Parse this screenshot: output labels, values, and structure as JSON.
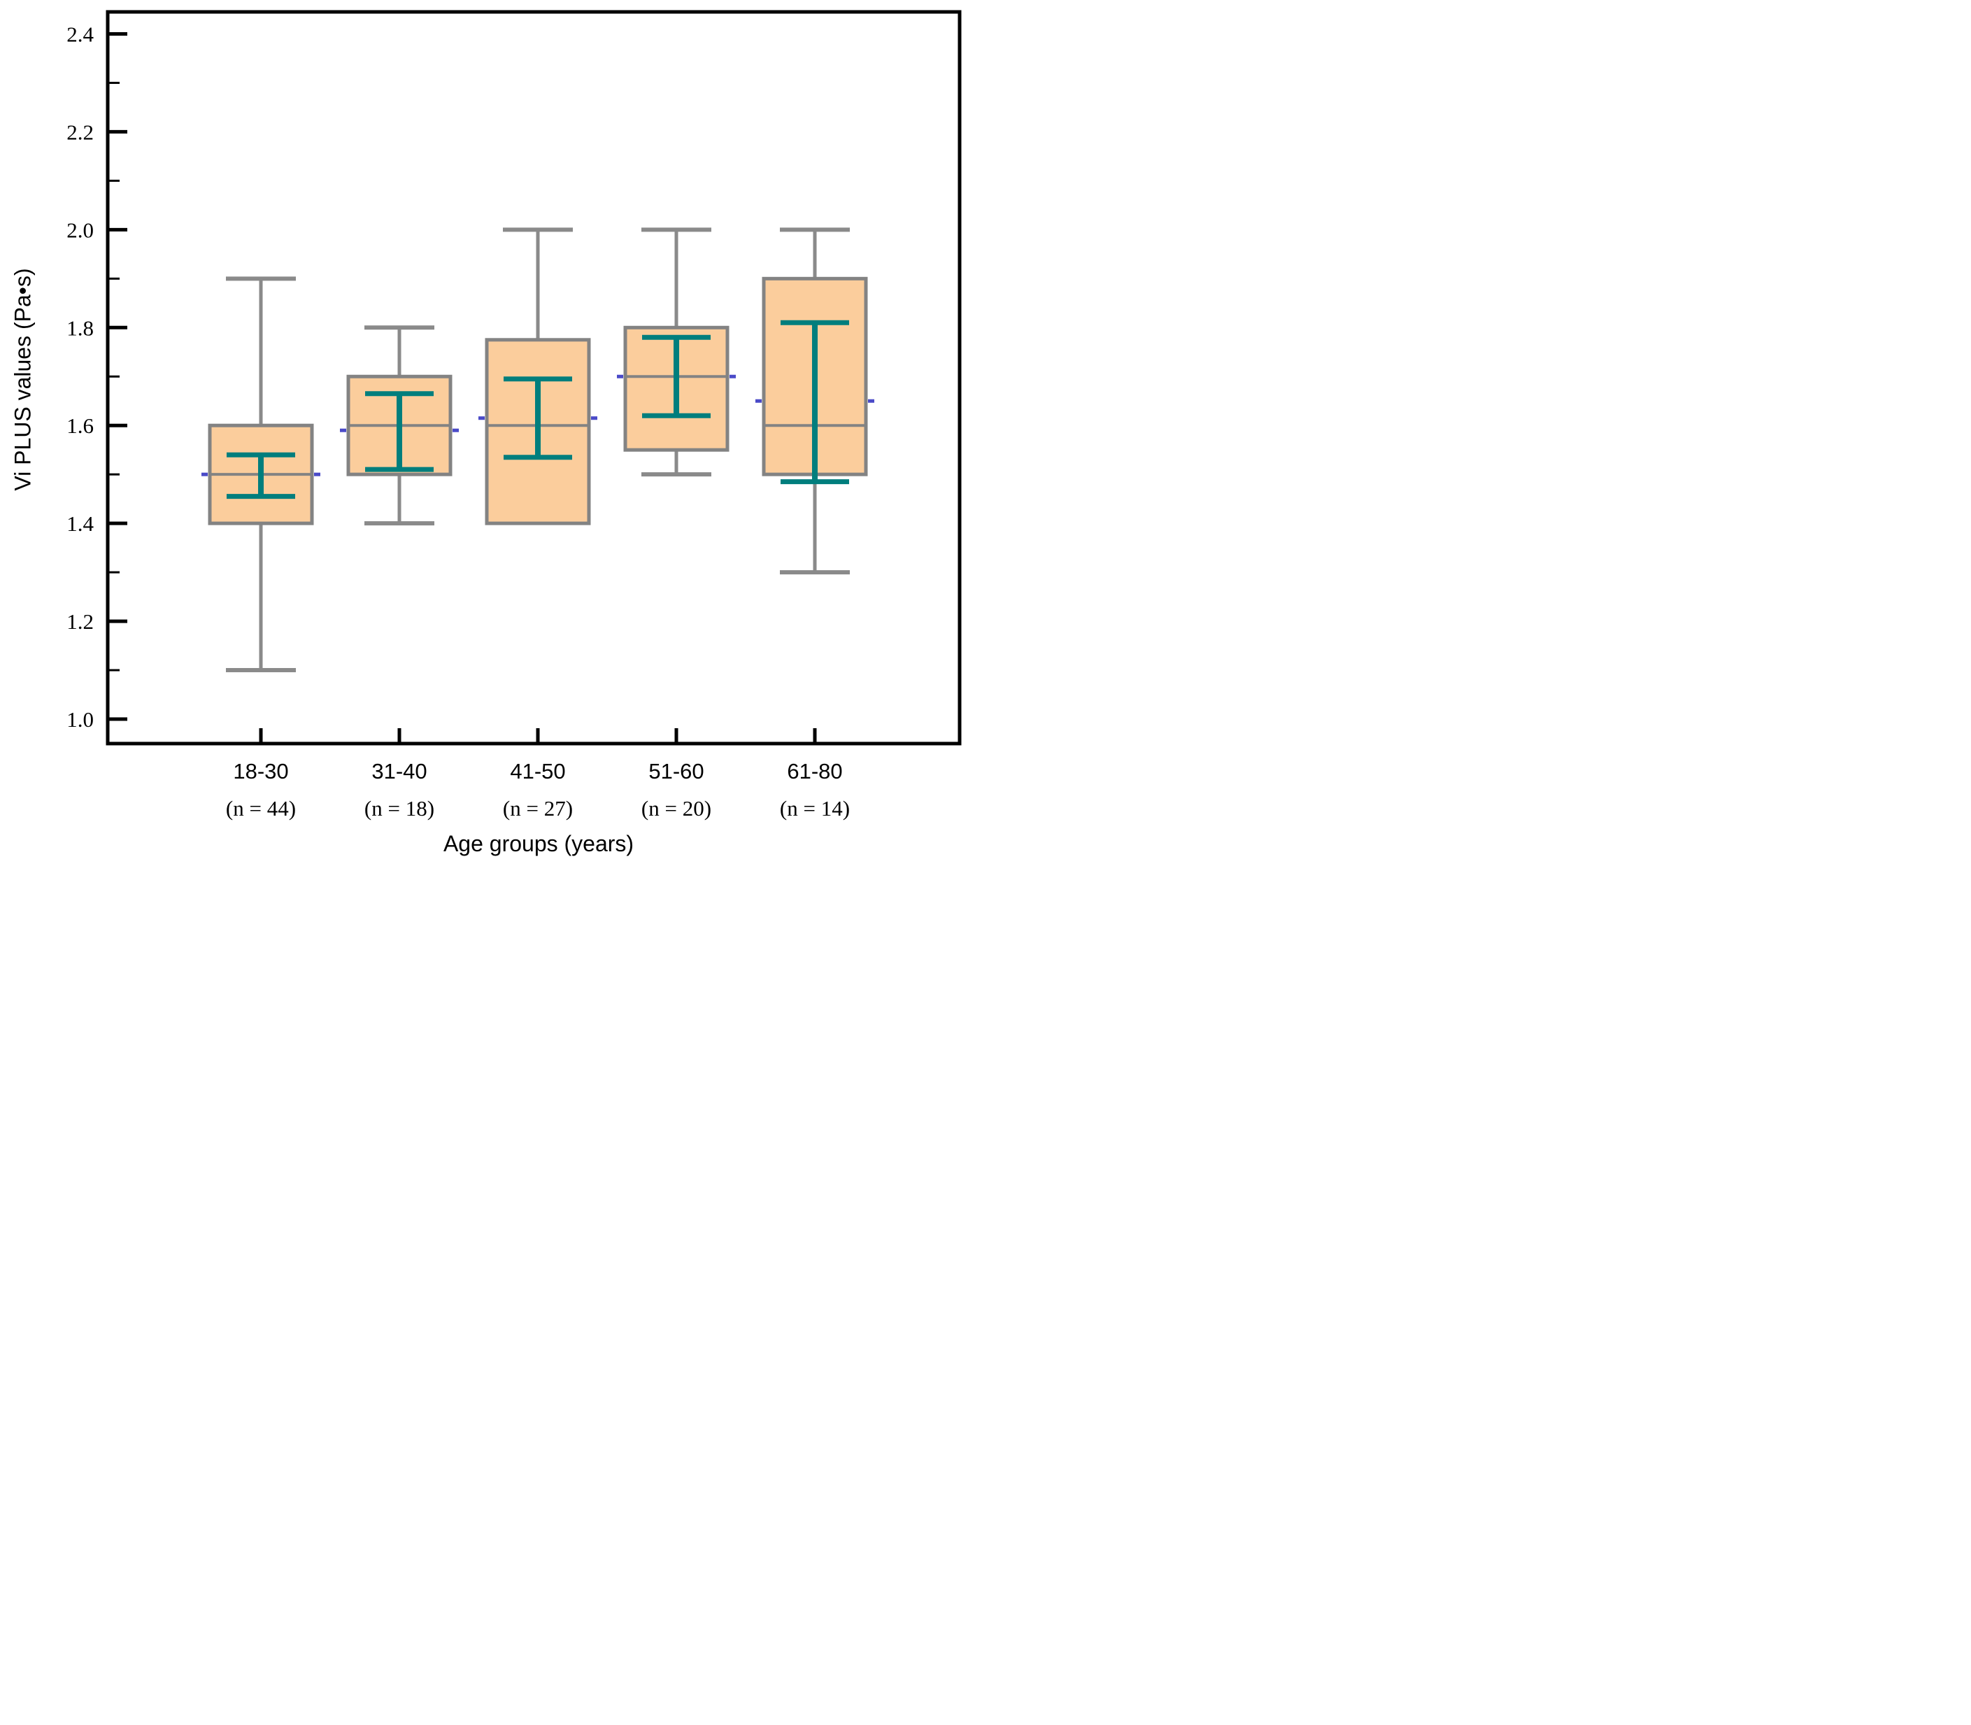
{
  "figure": {
    "y_axis_title": "Vi PLUS values (Pa•s)",
    "x_axis_title": "Age groups (years)"
  },
  "chart_data": {
    "type": "boxplot",
    "title": "",
    "xlabel": "Age groups (years)",
    "ylabel": "Vi PLUS values (Pa•s)",
    "ylim": [
      0.95,
      2.445
    ],
    "y_major_ticks": [
      "1.0",
      "1.2",
      "1.4",
      "1.6",
      "1.8",
      "2.0",
      "2.2",
      "2.4"
    ],
    "y_minor_ticks": [
      1.1,
      1.3,
      1.5,
      1.7,
      1.9,
      2.1,
      2.3
    ],
    "grid": false,
    "legend": null,
    "categories": [
      "18-30",
      "31-40",
      "41-50",
      "51-60",
      "61-80"
    ],
    "sample_size_labels": [
      "(n = 44)",
      "(n = 18)",
      "(n = 27)",
      "(n = 20)",
      "(n = 14)"
    ],
    "series": [
      {
        "category": "18-30",
        "n": 44,
        "whisker_low": 1.1,
        "q1": 1.4,
        "median": 1.5,
        "q3": 1.6,
        "whisker_high": 1.9,
        "errbar_low": 1.455,
        "errbar_high": 1.54,
        "mean": 1.5
      },
      {
        "category": "31-40",
        "n": 18,
        "whisker_low": 1.4,
        "q1": 1.5,
        "median": 1.6,
        "q3": 1.7,
        "whisker_high": 1.8,
        "errbar_low": 1.51,
        "errbar_high": 1.665,
        "mean": 1.59
      },
      {
        "category": "41-50",
        "n": 27,
        "whisker_low": 1.4,
        "q1": 1.4,
        "median": 1.6,
        "q3": 1.775,
        "whisker_high": 2.0,
        "errbar_low": 1.535,
        "errbar_high": 1.695,
        "mean": 1.615
      },
      {
        "category": "51-60",
        "n": 20,
        "whisker_low": 1.5,
        "q1": 1.55,
        "median": 1.7,
        "q3": 1.8,
        "whisker_high": 2.0,
        "errbar_low": 1.62,
        "errbar_high": 1.78,
        "mean": 1.7
      },
      {
        "category": "61-80",
        "n": 14,
        "whisker_low": 1.3,
        "q1": 1.5,
        "median": 1.6,
        "q3": 1.9,
        "whisker_high": 2.0,
        "errbar_low": 1.485,
        "errbar_high": 1.81,
        "mean": 1.65
      }
    ],
    "colors": {
      "box_fill": "#FBCD9C",
      "box_edge": "#838383",
      "whisker": "#8A8A8A",
      "error_bar": "#007E7D",
      "mean_marker": "#4A4AC8",
      "axis": "#000000",
      "text": "#000000",
      "background": "#FFFFFF"
    }
  }
}
